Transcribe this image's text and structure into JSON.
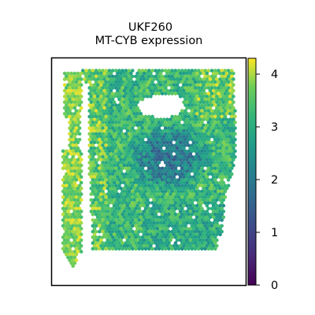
{
  "chart_data": {
    "type": "scatter",
    "title_line1": "UKF260",
    "title_line2": "MT-CYB expression",
    "xlabel": "",
    "ylabel": "",
    "grid": false,
    "colormap": "viridis",
    "color_range": [
      0,
      4.3
    ],
    "colorbar": {
      "ticks": [
        "0",
        "1",
        "2",
        "3",
        "4"
      ],
      "tick_values": [
        0,
        1,
        2,
        3,
        4
      ]
    },
    "regions": [
      {
        "name": "main tissue block",
        "typical_expression": 3.0
      },
      {
        "name": "left strip",
        "typical_expression": 3.8
      },
      {
        "name": "central low region",
        "typical_expression": 2.0
      }
    ],
    "colors": {
      "low": "#440154",
      "mid": "#21918c",
      "high": "#fde725"
    }
  }
}
